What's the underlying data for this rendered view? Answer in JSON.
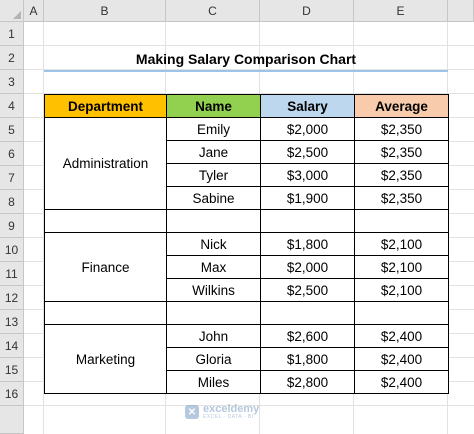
{
  "columns": [
    "A",
    "B",
    "C",
    "D",
    "E"
  ],
  "rows": [
    "1",
    "2",
    "3",
    "4",
    "5",
    "6",
    "7",
    "8",
    "9",
    "10",
    "11",
    "12",
    "13",
    "14",
    "15",
    "16"
  ],
  "title": "Making Salary Comparison Chart",
  "headers": {
    "department": "Department",
    "name": "Name",
    "salary": "Salary",
    "average": "Average"
  },
  "departments": {
    "administration": "Administration",
    "finance": "Finance",
    "marketing": "Marketing"
  },
  "admin": [
    {
      "name": "Emily",
      "salary": "$2,000",
      "average": "$2,350"
    },
    {
      "name": "Jane",
      "salary": "$2,500",
      "average": "$2,350"
    },
    {
      "name": "Tyler",
      "salary": "$3,000",
      "average": "$2,350"
    },
    {
      "name": "Sabine",
      "salary": "$1,900",
      "average": "$2,350"
    }
  ],
  "finance": [
    {
      "name": "Nick",
      "salary": "$1,800",
      "average": "$2,100"
    },
    {
      "name": "Max",
      "salary": "$2,000",
      "average": "$2,100"
    },
    {
      "name": "Wilkins",
      "salary": "$2,500",
      "average": "$2,100"
    }
  ],
  "marketing": [
    {
      "name": "John",
      "salary": "$2,600",
      "average": "$2,400"
    },
    {
      "name": "Gloria",
      "salary": "$1,800",
      "average": "$2,400"
    },
    {
      "name": "Miles",
      "salary": "$2,800",
      "average": "$2,400"
    }
  ],
  "watermark": {
    "name": "exceldemy",
    "tagline": "EXCEL · DATA · BI"
  }
}
